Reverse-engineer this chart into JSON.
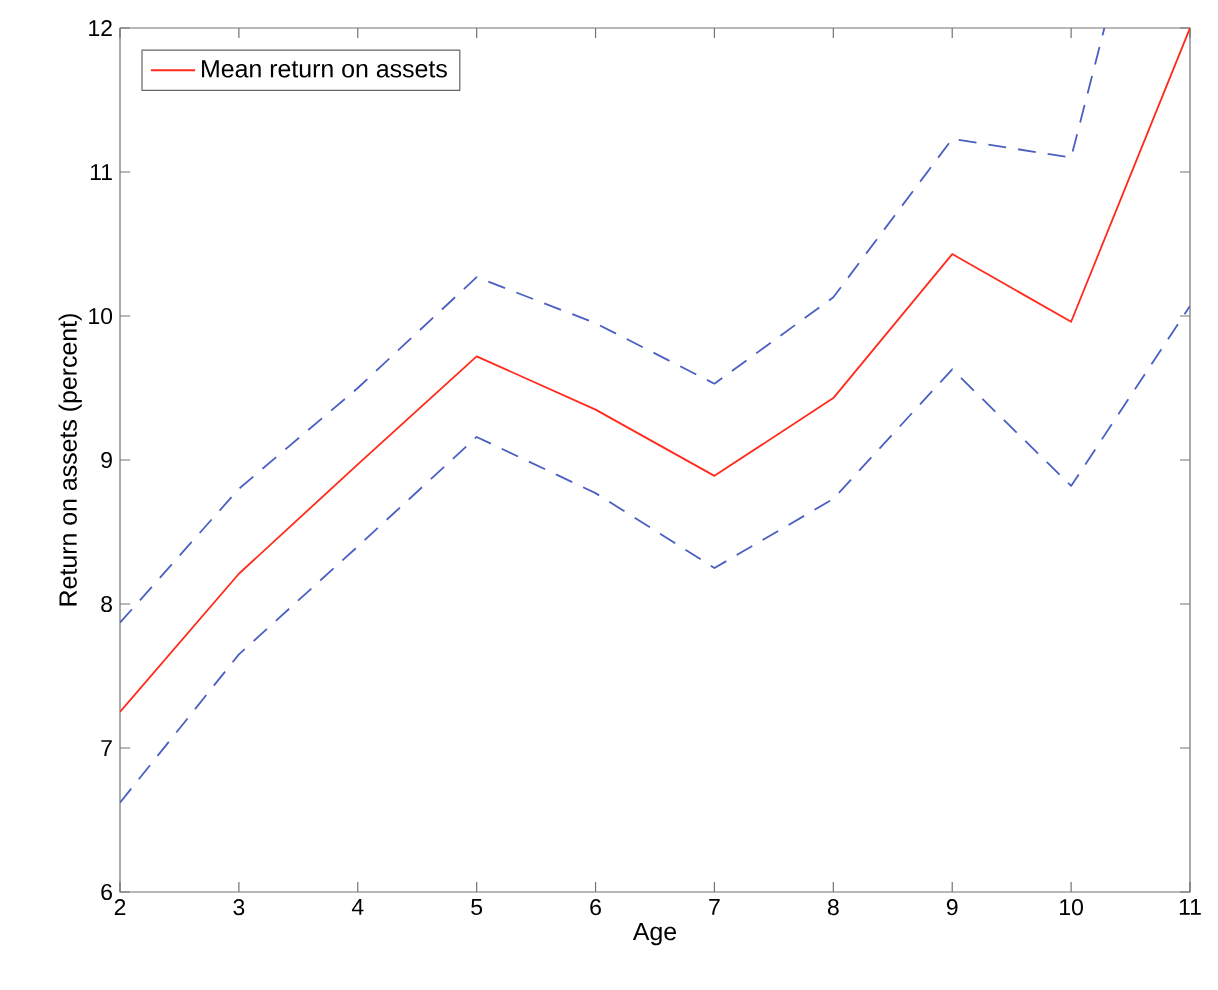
{
  "chart_data": {
    "type": "line",
    "xlabel": "Age",
    "ylabel": "Return on assets (percent)",
    "xlim": [
      2,
      11
    ],
    "ylim": [
      6,
      12
    ],
    "xticks": [
      2,
      3,
      4,
      5,
      6,
      7,
      8,
      9,
      10,
      11
    ],
    "yticks": [
      6,
      7,
      8,
      9,
      10,
      11,
      12
    ],
    "grid": false,
    "legend": "top left",
    "marker": "none",
    "series": [
      {
        "name": "Mean return on assets",
        "color": "#ff2a1a",
        "line_style": "solid",
        "x": [
          2,
          3,
          4,
          5,
          6,
          7,
          8,
          9,
          10,
          11
        ],
        "values": [
          7.25,
          8.21,
          8.97,
          9.72,
          9.35,
          8.89,
          9.43,
          10.43,
          9.96,
          12.0
        ]
      },
      {
        "color": "#4a5fc1",
        "line_style": "dashed",
        "x": [
          2,
          3,
          4,
          5,
          6,
          7,
          8,
          9,
          10,
          10.28
        ],
        "values": [
          7.87,
          8.8,
          9.5,
          10.27,
          9.95,
          9.53,
          10.13,
          11.23,
          11.1,
          12.0
        ]
      },
      {
        "color": "#4a5fc1",
        "line_style": "dashed",
        "x": [
          2,
          3,
          4,
          5,
          6,
          7,
          8,
          9,
          10,
          11
        ],
        "values": [
          6.62,
          7.65,
          8.4,
          9.16,
          8.77,
          8.25,
          8.73,
          9.63,
          8.82,
          10.07
        ]
      }
    ]
  }
}
